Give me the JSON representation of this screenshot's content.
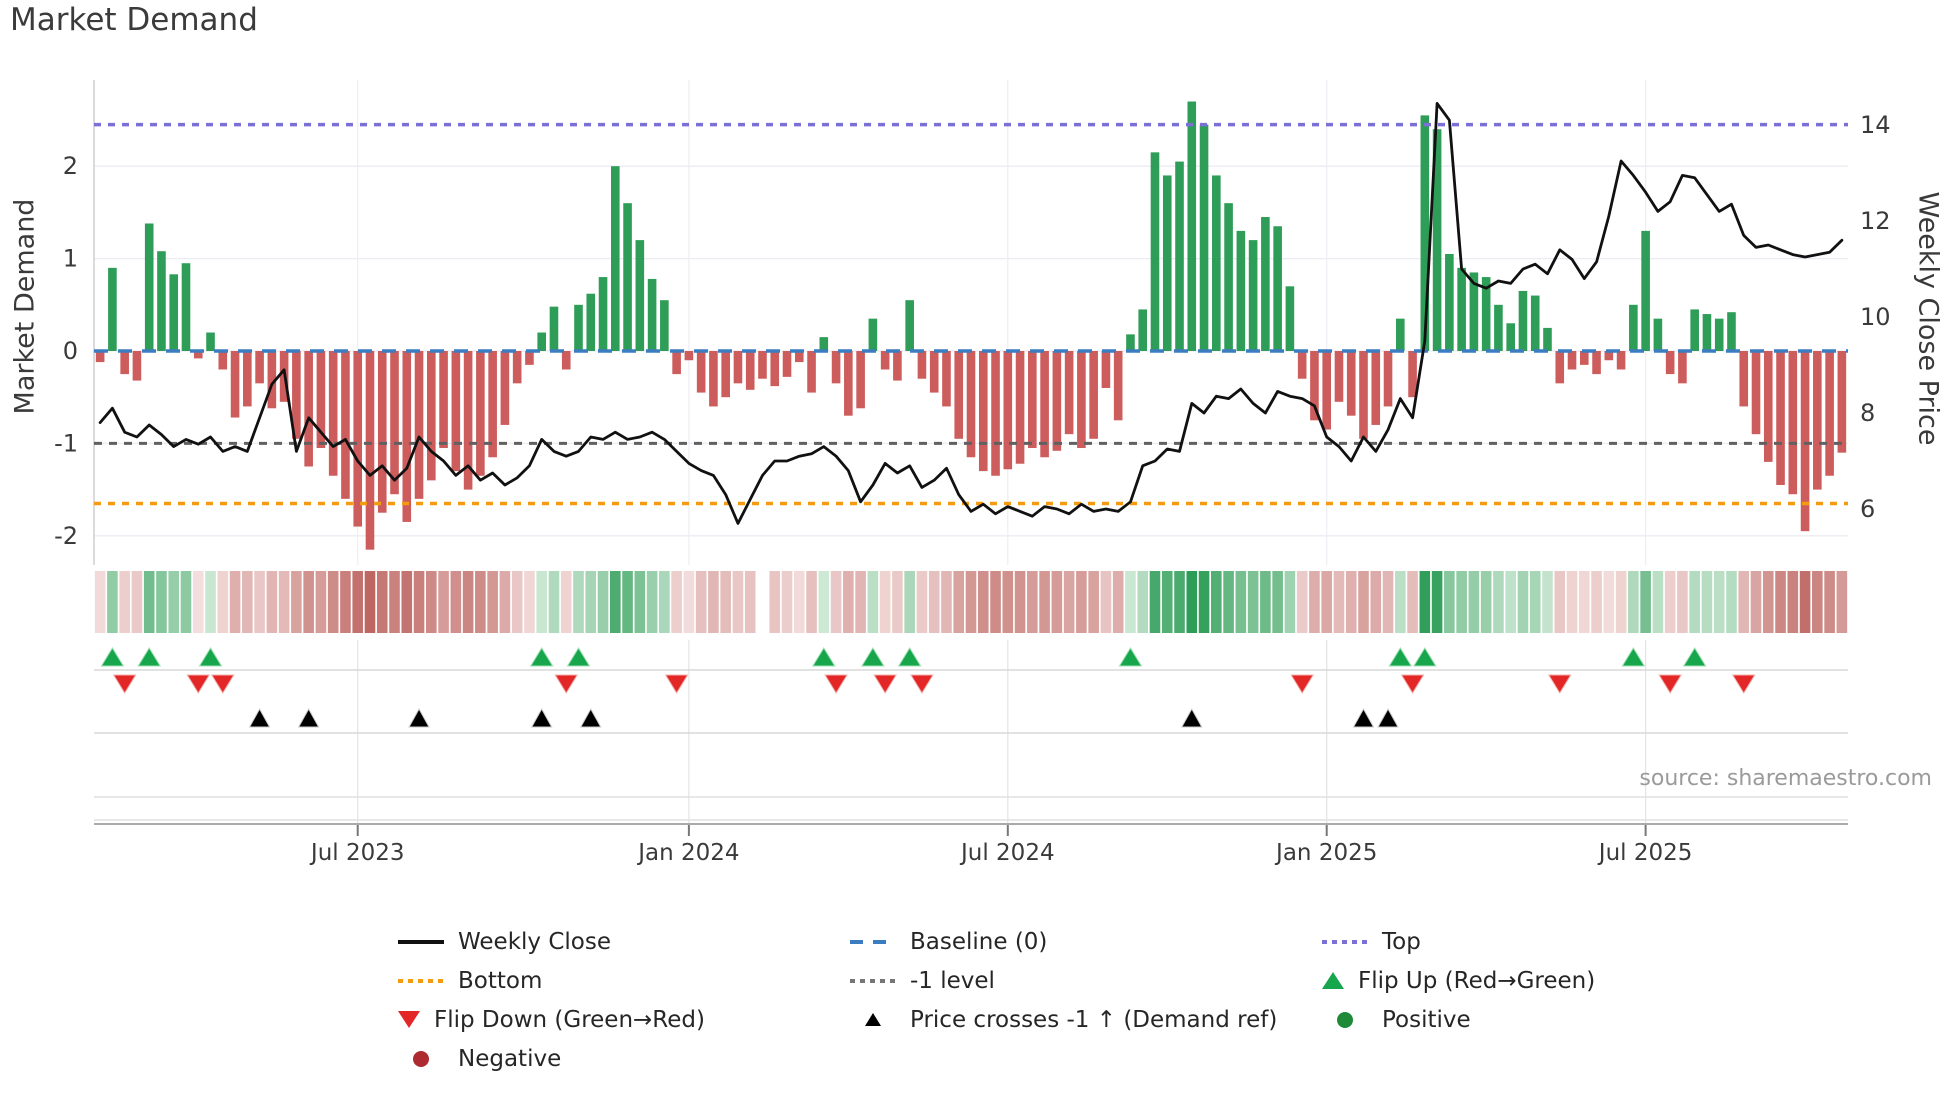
{
  "title": "Market Demand",
  "source": "source: sharemaestro.com",
  "axes": {
    "left_label": "Market Demand",
    "right_label": "Weekly Close Price",
    "left_ticks": [
      2,
      1,
      0,
      -1,
      -2
    ],
    "right_ticks": [
      14,
      12,
      10,
      8,
      6
    ]
  },
  "colors": {
    "bar_positive": "#2e9d57",
    "bar_negative": "#cd5c5c",
    "price_line": "#111111",
    "baseline": "#3b7dc0",
    "top_line": "#7b70d6",
    "bottom_line": "#f39c12",
    "minus1_line": "#606060",
    "flip_up": "#18a64d",
    "flip_down": "#e32726",
    "price_cross": "#000000",
    "grid": "#ebebf3",
    "axis_text": "#3a3a3a"
  },
  "legend": {
    "weekly_close": "Weekly Close",
    "baseline": "Baseline (0)",
    "top": "Top",
    "bottom": "Bottom",
    "minus1": "-1 level",
    "flip_up": "Flip Up (Red→Green)",
    "flip_down": "Flip Down (Green→Red)",
    "price_cross": "Price crosses -1 ↑ (Demand ref)",
    "positive": "Positive",
    "negative": "Negative"
  },
  "chart_data": {
    "type": "bar+line combo with heatmap strip and event markers",
    "x_start": "2023-02-05",
    "frequency": "weekly",
    "n_weeks": 143,
    "demand_ylim": [
      -2.6,
      2.95
    ],
    "price_ylim": [
      4.8,
      14.9
    ],
    "reference_levels": {
      "top": 2.45,
      "baseline": 0,
      "minus1": -1,
      "bottom": -1.65
    },
    "x_ticks": [
      {
        "week": 21,
        "label": "Jul 2023"
      },
      {
        "week": 48,
        "label": "Jan 2024"
      },
      {
        "week": 74,
        "label": "Jul 2024"
      },
      {
        "week": 100,
        "label": "Jan 2025"
      },
      {
        "week": 126,
        "label": "Jul 2025"
      }
    ],
    "series": [
      {
        "name": "Market Demand",
        "axis": "left",
        "values": [
          -0.12,
          0.9,
          -0.25,
          -0.32,
          1.38,
          1.08,
          0.83,
          0.95,
          -0.08,
          0.2,
          -0.2,
          -0.72,
          -0.6,
          -0.35,
          -0.62,
          -0.55,
          -0.95,
          -1.25,
          -1.05,
          -1.35,
          -1.6,
          -1.9,
          -2.15,
          -1.75,
          -1.55,
          -1.85,
          -1.6,
          -1.4,
          -1.05,
          -1.3,
          -1.5,
          -1.35,
          -1.15,
          -0.8,
          -0.35,
          -0.15,
          0.2,
          0.48,
          -0.2,
          0.5,
          0.62,
          0.8,
          2.0,
          1.6,
          1.2,
          0.78,
          0.55,
          -0.25,
          -0.1,
          -0.45,
          -0.6,
          -0.5,
          -0.35,
          -0.42,
          -0.3,
          -0.38,
          -0.28,
          -0.12,
          -0.45,
          0.15,
          -0.35,
          -0.7,
          -0.62,
          0.35,
          -0.2,
          -0.32,
          0.55,
          -0.3,
          -0.45,
          -0.6,
          -0.95,
          -1.15,
          -1.3,
          -1.35,
          -1.28,
          -1.22,
          -1.05,
          -1.15,
          -1.08,
          -0.9,
          -1.05,
          -0.95,
          -0.4,
          -0.75,
          0.18,
          0.45,
          2.15,
          1.9,
          2.05,
          2.7,
          2.45,
          1.9,
          1.6,
          1.3,
          1.2,
          1.45,
          1.35,
          0.7,
          -0.3,
          -0.75,
          -0.85,
          -0.55,
          -0.7,
          -0.95,
          -0.8,
          -0.6,
          0.35,
          -0.5,
          2.55,
          2.4,
          1.05,
          0.9,
          0.85,
          0.8,
          0.5,
          0.3,
          0.65,
          0.6,
          0.25,
          -0.35,
          -0.2,
          -0.15,
          -0.25,
          -0.1,
          -0.2,
          0.5,
          1.3,
          0.35,
          -0.25,
          -0.35,
          0.45,
          0.4,
          0.35,
          0.42,
          -0.6,
          -0.9,
          -1.2,
          -1.45,
          -1.55,
          -1.95,
          -1.5,
          -1.35,
          -1.1
        ]
      },
      {
        "name": "Weekly Close",
        "axis": "right",
        "values": [
          7.8,
          8.1,
          7.6,
          7.5,
          7.75,
          7.55,
          7.3,
          7.45,
          7.35,
          7.5,
          7.2,
          7.3,
          7.2,
          7.9,
          8.6,
          8.9,
          7.2,
          7.9,
          7.6,
          7.3,
          7.45,
          7.0,
          6.7,
          6.9,
          6.6,
          6.85,
          7.5,
          7.2,
          7.0,
          6.7,
          6.9,
          6.6,
          6.75,
          6.5,
          6.65,
          6.9,
          7.45,
          7.2,
          7.1,
          7.2,
          7.5,
          7.45,
          7.6,
          7.45,
          7.5,
          7.6,
          7.45,
          7.2,
          6.95,
          6.8,
          6.7,
          6.3,
          5.7,
          6.2,
          6.7,
          7.0,
          7.0,
          7.1,
          7.15,
          7.3,
          7.1,
          6.8,
          6.15,
          6.5,
          6.95,
          6.75,
          6.9,
          6.45,
          6.6,
          6.85,
          6.3,
          5.95,
          6.1,
          5.9,
          6.05,
          5.95,
          5.85,
          6.05,
          6.0,
          5.9,
          6.1,
          5.95,
          6.0,
          5.95,
          6.15,
          6.9,
          7.0,
          7.25,
          7.2,
          8.2,
          8.0,
          8.35,
          8.3,
          8.5,
          8.2,
          8.0,
          8.45,
          8.35,
          8.3,
          8.15,
          7.5,
          7.3,
          7.0,
          7.5,
          7.2,
          7.65,
          8.3,
          7.9,
          9.5,
          14.45,
          14.1,
          11.0,
          10.7,
          10.6,
          10.75,
          10.7,
          11.0,
          11.1,
          10.9,
          11.4,
          11.2,
          10.8,
          11.15,
          12.1,
          13.25,
          12.95,
          12.6,
          12.2,
          12.4,
          12.95,
          12.9,
          12.55,
          12.2,
          12.35,
          11.7,
          11.45,
          11.5,
          11.4,
          11.3,
          11.25,
          11.3,
          11.35,
          11.6
        ]
      }
    ],
    "markers": {
      "flip_up_weeks": [
        1,
        4,
        9,
        36,
        39,
        59,
        63,
        66,
        84,
        106,
        108,
        125,
        130
      ],
      "flip_down_weeks": [
        2,
        8,
        10,
        38,
        47,
        60,
        64,
        67,
        98,
        107,
        119,
        128,
        134
      ],
      "price_cross_weeks": [
        13,
        17,
        26,
        36,
        40,
        89,
        103,
        105
      ]
    },
    "heatmap": {
      "gap_weeks": [
        54
      ]
    },
    "legend_position": "bottom",
    "grid": true
  }
}
